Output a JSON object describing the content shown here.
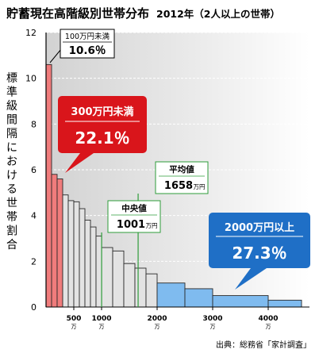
{
  "chart_data": {
    "type": "bar",
    "title": "貯蓄現在高階級別世帯分布",
    "subtitle": "2012年（2人以上の世帯）",
    "ylabel": "標準級間隔における世帯割合",
    "source": "出典：総務省「家計調査」",
    "ylim": [
      0,
      12
    ],
    "y_ticks": [
      "0",
      "2",
      "4",
      "6",
      "8",
      "10",
      "12"
    ],
    "x_ticks": [
      {
        "label": "500",
        "unit": "万",
        "x": 500
      },
      {
        "label": "1000",
        "unit": "万",
        "x": 1000
      },
      {
        "label": "2000",
        "unit": "万",
        "x": 2000
      },
      {
        "label": "3000",
        "unit": "万",
        "x": 3000
      },
      {
        "label": "4000",
        "unit": "万",
        "x": 4000
      }
    ],
    "bins": [
      {
        "x0": 0,
        "x1": 100,
        "value": 10.6,
        "group": "low"
      },
      {
        "x0": 100,
        "x1": 200,
        "value": 5.8,
        "group": "low"
      },
      {
        "x0": 200,
        "x1": 300,
        "value": 5.6,
        "group": "low"
      },
      {
        "x0": 300,
        "x1": 400,
        "value": 4.9,
        "group": "mid"
      },
      {
        "x0": 400,
        "x1": 500,
        "value": 4.65,
        "group": "mid"
      },
      {
        "x0": 500,
        "x1": 600,
        "value": 4.6,
        "group": "mid"
      },
      {
        "x0": 600,
        "x1": 700,
        "value": 4.3,
        "group": "mid"
      },
      {
        "x0": 700,
        "x1": 800,
        "value": 3.8,
        "group": "mid"
      },
      {
        "x0": 800,
        "x1": 900,
        "value": 3.5,
        "group": "mid"
      },
      {
        "x0": 900,
        "x1": 1000,
        "value": 3.1,
        "group": "mid"
      },
      {
        "x0": 1000,
        "x1": 1200,
        "value": 2.6,
        "group": "mid"
      },
      {
        "x0": 1200,
        "x1": 1400,
        "value": 2.45,
        "group": "mid"
      },
      {
        "x0": 1400,
        "x1": 1600,
        "value": 1.9,
        "group": "mid"
      },
      {
        "x0": 1600,
        "x1": 1800,
        "value": 1.7,
        "group": "mid"
      },
      {
        "x0": 1800,
        "x1": 2000,
        "value": 1.45,
        "group": "mid"
      },
      {
        "x0": 2000,
        "x1": 2500,
        "value": 1.05,
        "group": "high"
      },
      {
        "x0": 2500,
        "x1": 3000,
        "value": 0.8,
        "group": "high"
      },
      {
        "x0": 3000,
        "x1": 4000,
        "value": 0.5,
        "group": "high"
      },
      {
        "x0": 4000,
        "x1": 4600,
        "value": 0.3,
        "group": "high"
      }
    ],
    "annotations": {
      "under100": {
        "label": "100万円未満",
        "value": "10.6％"
      },
      "under300": {
        "label": "300万円未満",
        "value": "22.1％"
      },
      "over2000": {
        "label": "2000万円以上",
        "value": "27.3％"
      },
      "median": {
        "label": "中央値",
        "value": "1001",
        "unit": "万円",
        "x": 1001
      },
      "mean": {
        "label": "平均値",
        "value": "1658",
        "unit": "万円",
        "x": 1658
      }
    },
    "colors": {
      "low": "#f07c7c",
      "mid": "#e3e3e3",
      "high": "#7fbbef",
      "red_callout": "#d9151b",
      "blue_callout": "#1f6fc6",
      "green_line": "#2e9c3a"
    }
  }
}
